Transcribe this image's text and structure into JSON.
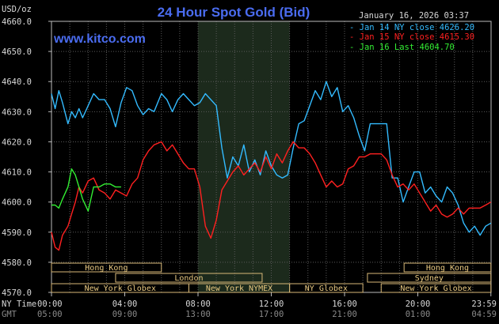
{
  "header": {
    "unit": "USD/oz",
    "title": "24 Hour Spot Gold (Bid)",
    "date": "January 16, 2026 03:37",
    "website": "www.kitco.com"
  },
  "legend": [
    {
      "text": "- Jan 14 NY close 4626.20",
      "color": "#33bbff"
    },
    {
      "text": "- Jan 15 NY close 4615.30",
      "color": "#ff2020"
    },
    {
      "text": "- Jan 16 Last 4604.70",
      "color": "#33ee33"
    }
  ],
  "row_labels": {
    "ny": "NY Time",
    "gmt": "GMT"
  },
  "x_ticks_ny": [
    "00:00",
    "04:00",
    "08:00",
    "12:00",
    "16:00",
    "20:00",
    "23:59"
  ],
  "x_ticks_gmt": [
    "05:00",
    "09:00",
    "13:00",
    "17:00",
    "21:00",
    "01:00",
    "04:59"
  ],
  "sessions": [
    {
      "label": "Hong Kong",
      "start": 0,
      "end": 6,
      "row": 0
    },
    {
      "label": "Hong Kong",
      "start": 19.25,
      "end": 23.99,
      "row": 0
    },
    {
      "label": "London",
      "start": 3.5,
      "end": 11.5,
      "row": 1
    },
    {
      "label": "Sydney",
      "start": 17.25,
      "end": 23.99,
      "row": 1
    },
    {
      "label": "New York Globex",
      "start": 0,
      "end": 7.5,
      "row": 2
    },
    {
      "label": "New York NYMEX",
      "start": 7.5,
      "end": 13.0,
      "row": 2
    },
    {
      "label": "NY Globex",
      "start": 13.0,
      "end": 17.0,
      "row": 2
    },
    {
      "label": "New York Globex",
      "start": 18.0,
      "end": 23.99,
      "row": 2
    }
  ],
  "chart_data": {
    "type": "line",
    "title": "24 Hour Spot Gold (Bid)",
    "ylabel": "USD/oz",
    "xlabel": "NY Time",
    "xlim": [
      0,
      24
    ],
    "ylim": [
      4570,
      4660
    ],
    "y_ticks": [
      "4660.0",
      "4650.0",
      "4640.0",
      "4630.0",
      "4620.0",
      "4610.0",
      "4600.0",
      "4590.0",
      "4580.0",
      "4570.0"
    ],
    "grid": true,
    "nymex_shade": [
      8.0,
      13.0
    ],
    "series": [
      {
        "name": "Jan 14 NY close 4626.20",
        "color": "#33bbff",
        "x": [
          0,
          0.2,
          0.4,
          0.6,
          0.9,
          1.1,
          1.3,
          1.5,
          1.7,
          2.0,
          2.3,
          2.6,
          2.9,
          3.2,
          3.5,
          3.8,
          4.1,
          4.4,
          4.7,
          5.0,
          5.3,
          5.6,
          6.0,
          6.3,
          6.6,
          6.9,
          7.2,
          7.5,
          7.8,
          8.1,
          8.4,
          8.7,
          9.0,
          9.3,
          9.6,
          9.9,
          10.2,
          10.5,
          10.8,
          11.1,
          11.4,
          11.7,
          12.0,
          12.3,
          12.6,
          12.9,
          13.2,
          13.5,
          13.8,
          14.1,
          14.4,
          14.7,
          15.0,
          15.3,
          15.6,
          15.9,
          16.2,
          16.5,
          16.8,
          17.1,
          17.4,
          17.7,
          18.0,
          18.3,
          18.6,
          18.9,
          19.2,
          19.5,
          19.8,
          20.1,
          20.4,
          20.7,
          21.0,
          21.3,
          21.6,
          21.9,
          22.2,
          22.5,
          22.8,
          23.1,
          23.4,
          23.7,
          23.99
        ],
        "y": [
          4636,
          4631,
          4637,
          4633,
          4626,
          4630,
          4628,
          4631,
          4628,
          4632,
          4636,
          4634,
          4634,
          4631,
          4625,
          4633,
          4638,
          4637,
          4632,
          4629,
          4631,
          4630,
          4636,
          4634,
          4630,
          4634,
          4636,
          4634,
          4632,
          4633,
          4636,
          4634,
          4632,
          4618,
          4608,
          4615,
          4612,
          4619,
          4610,
          4614,
          4609,
          4617,
          4612,
          4609,
          4608,
          4609,
          4618,
          4626,
          4627,
          4632,
          4637,
          4634,
          4640,
          4635,
          4638,
          4630,
          4632,
          4628,
          4622,
          4617,
          4626,
          4626,
          4626,
          4626,
          4608,
          4608,
          4600,
          4605,
          4610,
          4610,
          4603,
          4605,
          4602,
          4600,
          4605,
          4603,
          4599,
          4593,
          4590,
          4592,
          4589,
          4592,
          4593
        ]
      },
      {
        "name": "Jan 15 NY close 4615.30",
        "color": "#ff2020",
        "x": [
          0,
          0.2,
          0.4,
          0.6,
          0.9,
          1.1,
          1.3,
          1.5,
          1.7,
          2.0,
          2.3,
          2.6,
          2.9,
          3.2,
          3.5,
          3.8,
          4.1,
          4.4,
          4.7,
          5.0,
          5.3,
          5.6,
          6.0,
          6.3,
          6.6,
          6.9,
          7.2,
          7.5,
          7.8,
          8.1,
          8.4,
          8.7,
          9.0,
          9.3,
          9.6,
          9.9,
          10.2,
          10.5,
          10.8,
          11.1,
          11.4,
          11.7,
          12.0,
          12.3,
          12.6,
          12.9,
          13.2,
          13.5,
          13.8,
          14.1,
          14.4,
          14.7,
          15.0,
          15.3,
          15.6,
          15.9,
          16.2,
          16.5,
          16.8,
          17.1,
          17.4,
          17.7,
          18.0,
          18.3,
          18.6,
          18.9,
          19.2,
          19.5,
          19.8,
          20.1,
          20.4,
          20.7,
          21.0,
          21.3,
          21.6,
          21.9,
          22.2,
          22.5,
          22.8,
          23.1,
          23.4,
          23.7,
          23.99
        ],
        "y": [
          4590,
          4585,
          4584,
          4589,
          4592,
          4596,
          4600,
          4605,
          4603,
          4607,
          4608,
          4604,
          4603,
          4601,
          4604,
          4603,
          4602,
          4606,
          4608,
          4614,
          4617,
          4619,
          4620,
          4617,
          4619,
          4616,
          4613,
          4611,
          4611,
          4605,
          4592,
          4588,
          4594,
          4604,
          4607,
          4610,
          4612,
          4609,
          4611,
          4613,
          4610,
          4615,
          4611,
          4616,
          4613,
          4617,
          4620,
          4618,
          4618,
          4616,
          4613,
          4609,
          4605,
          4607,
          4605,
          4606,
          4611,
          4612,
          4615,
          4615,
          4616,
          4616,
          4616,
          4614,
          4609,
          4605,
          4606,
          4604,
          4606,
          4603,
          4600,
          4597,
          4599,
          4596,
          4595,
          4596,
          4598,
          4596,
          4598,
          4598,
          4598,
          4599,
          4600
        ]
      },
      {
        "name": "Jan 16 Last 4604.70",
        "color": "#33ee33",
        "x": [
          0,
          0.2,
          0.4,
          0.6,
          0.9,
          1.1,
          1.3,
          1.5,
          1.7,
          2.0,
          2.3,
          2.6,
          2.9,
          3.2,
          3.5,
          3.8
        ],
        "y": [
          4599,
          4599,
          4598,
          4601,
          4605,
          4611,
          4609,
          4605,
          4601,
          4597,
          4605,
          4605,
          4606,
          4606,
          4605,
          4605
        ]
      }
    ]
  }
}
